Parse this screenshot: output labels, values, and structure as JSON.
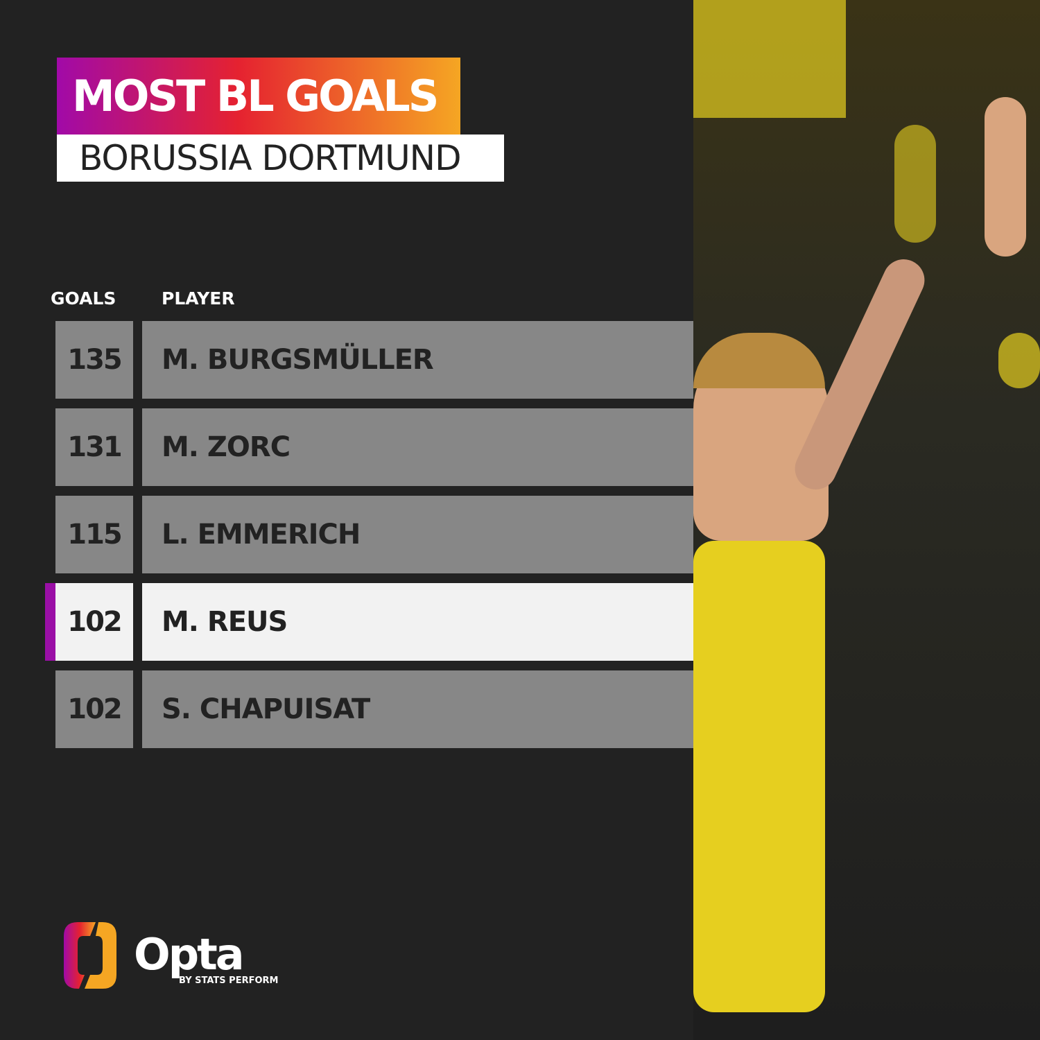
{
  "title": "MOST BL GOALS",
  "subtitle": "BORUSSIA DORTMUND",
  "columns": {
    "goals": "GOALS",
    "player": "PLAYER"
  },
  "rows": [
    {
      "goals": "135",
      "player": "M. BURGSMÜLLER",
      "highlight": false
    },
    {
      "goals": "131",
      "player": "M. ZORC",
      "highlight": false
    },
    {
      "goals": "115",
      "player": "L. EMMERICH",
      "highlight": false
    },
    {
      "goals": "102",
      "player": "M. REUS",
      "highlight": true
    },
    {
      "goals": "102",
      "player": "S. CHAPUISAT",
      "highlight": false
    }
  ],
  "chart_data": {
    "type": "table",
    "title": "MOST BL GOALS",
    "subtitle": "BORUSSIA DORTMUND",
    "columns": [
      "GOALS",
      "PLAYER"
    ],
    "categories": [
      "M. BURGSMÜLLER",
      "M. ZORC",
      "L. EMMERICH",
      "M. REUS",
      "S. CHAPUISAT"
    ],
    "values": [
      135,
      131,
      115,
      102,
      102
    ],
    "highlighted": "M. REUS"
  },
  "branding": {
    "logo": "Opta",
    "tagline": "BY STATS PERFORM"
  },
  "colors": {
    "gradient_start": "#a10aa8",
    "gradient_mid": "#e52230",
    "gradient_end": "#f5a623",
    "accent": "#9a0fa6",
    "row": "#878787",
    "highlight_row": "#f2f2f2",
    "background": "#222222"
  }
}
